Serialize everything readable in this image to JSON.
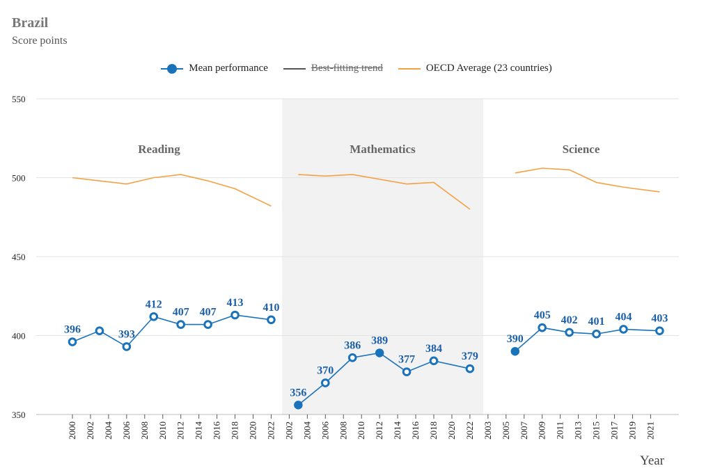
{
  "header": {
    "title": "Brazil",
    "subtitle": "Score points"
  },
  "legend": [
    {
      "label": "Mean performance",
      "color": "#1a72bb",
      "kind": "dot",
      "enabled": true
    },
    {
      "label": "Best-fitting trend",
      "color": "#555555",
      "kind": "line",
      "enabled": false
    },
    {
      "label": "OECD Average (23 countries)",
      "color": "#f5a142",
      "kind": "line",
      "enabled": true
    }
  ],
  "chart_data": {
    "type": "line",
    "xlabel": "Year",
    "ylabel": "",
    "ylim": [
      350,
      550
    ],
    "yticks": [
      350,
      400,
      450,
      500,
      550
    ],
    "grid": true,
    "legend_position": "top",
    "colors": {
      "mean": "#1a72bb",
      "oecd": "#f5a142",
      "panel_shade": "#f2f2f2"
    },
    "panels": [
      {
        "name": "Reading",
        "shaded": false,
        "tick_labels": [
          "2000",
          "2002",
          "2004",
          "2006",
          "2008",
          "2010",
          "2012",
          "2014",
          "2016",
          "2018",
          "2020",
          "2022"
        ],
        "series": [
          {
            "name": "Mean performance",
            "x": [
              2000,
              2003,
              2006,
              2009,
              2012,
              2015,
              2018,
              2022
            ],
            "y": [
              396,
              403,
              393,
              412,
              407,
              407,
              413,
              410
            ],
            "labels": [
              "396",
              "",
              "393",
              "412",
              "407",
              "407",
              "413",
              "410"
            ],
            "filled": [
              false,
              false,
              false,
              false,
              false,
              false,
              false,
              false
            ]
          },
          {
            "name": "OECD Average (23 countries)",
            "x": [
              2000,
              2003,
              2006,
              2009,
              2012,
              2015,
              2018,
              2022
            ],
            "y": [
              500,
              498,
              496,
              500,
              502,
              498,
              493,
              482
            ]
          }
        ]
      },
      {
        "name": "Mathematics",
        "shaded": true,
        "tick_labels": [
          "2002",
          "2004",
          "2006",
          "2008",
          "2010",
          "2012",
          "2014",
          "2016",
          "2018",
          "2020",
          "2022"
        ],
        "series": [
          {
            "name": "Mean performance",
            "x": [
              2003,
              2006,
              2009,
              2012,
              2015,
              2018,
              2022
            ],
            "y": [
              356,
              370,
              386,
              389,
              377,
              384,
              379
            ],
            "labels": [
              "356",
              "370",
              "386",
              "389",
              "377",
              "384",
              "379"
            ],
            "filled": [
              true,
              false,
              false,
              true,
              false,
              false,
              false
            ]
          },
          {
            "name": "OECD Average (23 countries)",
            "x": [
              2003,
              2006,
              2009,
              2012,
              2015,
              2018,
              2022
            ],
            "y": [
              502,
              501,
              502,
              499,
              496,
              497,
              480
            ]
          }
        ]
      },
      {
        "name": "Science",
        "shaded": false,
        "tick_labels": [
          "2003",
          "2005",
          "2007",
          "2009",
          "2011",
          "2013",
          "2015",
          "2017",
          "2019",
          "2021"
        ],
        "series": [
          {
            "name": "Mean performance",
            "x": [
              2006,
              2009,
              2012,
              2015,
              2018,
              2022
            ],
            "y": [
              390,
              405,
              402,
              401,
              404,
              403
            ],
            "labels": [
              "390",
              "405",
              "402",
              "401",
              "404",
              "403"
            ],
            "filled": [
              true,
              false,
              false,
              false,
              false,
              false
            ]
          },
          {
            "name": "OECD Average (23 countries)",
            "x": [
              2006,
              2009,
              2012,
              2015,
              2018,
              2022
            ],
            "y": [
              503,
              506,
              505,
              497,
              494,
              491
            ]
          }
        ]
      }
    ]
  }
}
